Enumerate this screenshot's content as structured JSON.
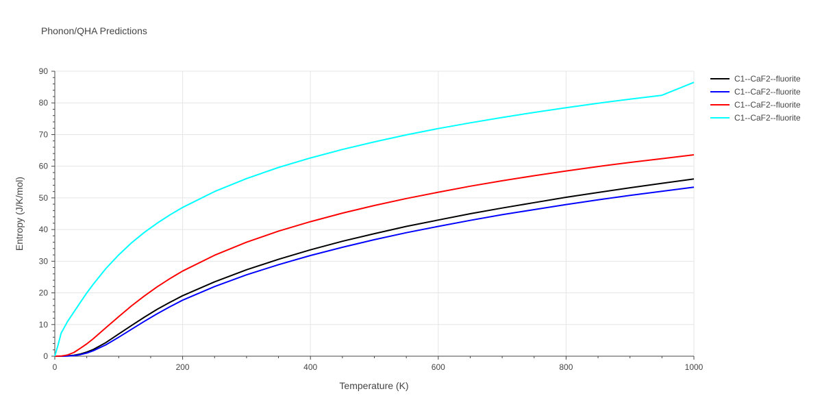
{
  "chart_data": {
    "type": "line",
    "title": "Phonon/QHA Predictions",
    "xlabel": "Temperature (K)",
    "ylabel": "Entropy (J/K/mol)",
    "xlim": [
      0,
      1000
    ],
    "ylim": [
      0,
      90
    ],
    "x_ticks": [
      0,
      200,
      400,
      600,
      800,
      1000
    ],
    "y_ticks": [
      0,
      10,
      20,
      30,
      40,
      50,
      60,
      70,
      80,
      90
    ],
    "grid": true,
    "legend_position": "top-right",
    "series": [
      {
        "name": "C1--CaF2--fluorite",
        "color": "#000000",
        "x": [
          0,
          10,
          20,
          30,
          40,
          50,
          60,
          80,
          100,
          120,
          140,
          160,
          180,
          200,
          250,
          300,
          350,
          400,
          450,
          500,
          550,
          600,
          650,
          700,
          750,
          800,
          850,
          900,
          950,
          1000
        ],
        "y": [
          0,
          0,
          0.1,
          0.3,
          0.7,
          1.3,
          2.1,
          4.3,
          7.0,
          9.7,
          12.3,
          14.8,
          17.0,
          19.1,
          23.5,
          27.3,
          30.6,
          33.6,
          36.3,
          38.7,
          41.0,
          43.0,
          45.0,
          46.8,
          48.5,
          50.2,
          51.7,
          53.2,
          54.6,
          56.0
        ]
      },
      {
        "name": "C1--CaF2--fluorite",
        "color": "#0000ff",
        "x": [
          0,
          10,
          20,
          30,
          40,
          50,
          60,
          80,
          100,
          120,
          140,
          160,
          180,
          200,
          250,
          300,
          350,
          400,
          450,
          500,
          550,
          600,
          650,
          700,
          750,
          800,
          850,
          900,
          950,
          1000
        ],
        "y": [
          0,
          0,
          0.05,
          0.2,
          0.5,
          1.0,
          1.7,
          3.6,
          6.0,
          8.5,
          11.0,
          13.4,
          15.6,
          17.7,
          22.0,
          25.7,
          28.9,
          31.8,
          34.4,
          36.8,
          39.0,
          41.0,
          42.9,
          44.7,
          46.3,
          47.9,
          49.4,
          50.8,
          52.1,
          53.4
        ]
      },
      {
        "name": "C1--CaF2--fluorite",
        "color": "#ff0000",
        "x": [
          0,
          10,
          20,
          30,
          40,
          50,
          60,
          80,
          100,
          120,
          140,
          160,
          180,
          200,
          250,
          300,
          350,
          400,
          450,
          500,
          550,
          600,
          650,
          700,
          750,
          800,
          850,
          900,
          950,
          1000
        ],
        "y": [
          0,
          0.05,
          0.4,
          1.2,
          2.5,
          3.9,
          5.5,
          9.0,
          12.5,
          15.9,
          19.0,
          21.9,
          24.5,
          26.9,
          31.9,
          36.0,
          39.5,
          42.5,
          45.2,
          47.6,
          49.8,
          51.8,
          53.7,
          55.4,
          57.0,
          58.5,
          59.9,
          61.2,
          62.4,
          63.6
        ]
      },
      {
        "name": "C1--CaF2--fluorite",
        "color": "#00ffff",
        "x": [
          0,
          5,
          10,
          20,
          30,
          40,
          50,
          60,
          80,
          100,
          120,
          140,
          160,
          180,
          200,
          250,
          300,
          350,
          400,
          450,
          500,
          550,
          600,
          650,
          700,
          750,
          800,
          850,
          900,
          950,
          1000
        ],
        "y": [
          0,
          3.5,
          7.3,
          11.0,
          14.0,
          17.0,
          20.0,
          22.7,
          27.7,
          32.0,
          35.8,
          39.1,
          42.0,
          44.6,
          47.0,
          52.0,
          56.1,
          59.6,
          62.6,
          65.3,
          67.7,
          69.9,
          71.9,
          73.7,
          75.4,
          77.0,
          78.5,
          79.9,
          81.2,
          82.4,
          86.5
        ]
      }
    ]
  }
}
